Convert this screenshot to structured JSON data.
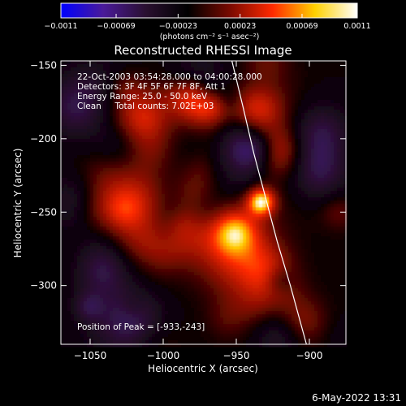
{
  "chart_data": {
    "type": "heatmap",
    "title": "Reconstructed RHESSI Image",
    "xlabel": "Heliocentric X (arcsec)",
    "ylabel": "Heliocentric Y (arcsec)",
    "xlim": [
      -1070,
      -875
    ],
    "ylim": [
      -340,
      -147
    ],
    "xticks": [
      -1050,
      -1000,
      -950,
      -900
    ],
    "yticks": [
      -150,
      -200,
      -250,
      -300
    ],
    "xtick_labels": [
      "−1050",
      "−1000",
      "−950",
      "−900"
    ],
    "ytick_labels": [
      "−150",
      "−200",
      "−250",
      "−300"
    ],
    "colorbar": {
      "range": [
        -0.0011,
        0.0011
      ],
      "ticks": [
        -0.0011,
        -0.00069,
        -0.00023,
        0.00023,
        0.00069,
        0.0011
      ],
      "tick_labels": [
        "−0.0011",
        "−0.00069",
        "−0.00023",
        "0.00023",
        "0.00069",
        "0.0011"
      ],
      "unit_label": "(photons cm⁻² s⁻¹ asec⁻²)",
      "colors": [
        "#0000ff",
        "#4a1a9a",
        "#2a1030",
        "#000000",
        "#7a0a00",
        "#ff2a00",
        "#ffd000",
        "#ffffff"
      ]
    },
    "peak": {
      "x": -933,
      "y": -243,
      "value": 0.0011
    },
    "limb_curve": [
      [
        -953,
        -147
      ],
      [
        -945,
        -180
      ],
      [
        -938,
        -210
      ],
      [
        -930,
        -240
      ],
      [
        -922,
        -270
      ],
      [
        -913,
        -300
      ],
      [
        -902,
        -340
      ]
    ],
    "annotations": [
      "22-Oct-2003 03:54:28.000 to 04:00:28.000",
      "Detectors: 3F 4F 5F 6F 7F 8F, Att 1",
      "Energy Range: 25.0 - 50.0 keV",
      "Clean     Total counts: 7.02E+03"
    ],
    "peak_label": "Position of Peak = [-933,-243]"
  },
  "timestamp": "6-May-2022 13:31"
}
